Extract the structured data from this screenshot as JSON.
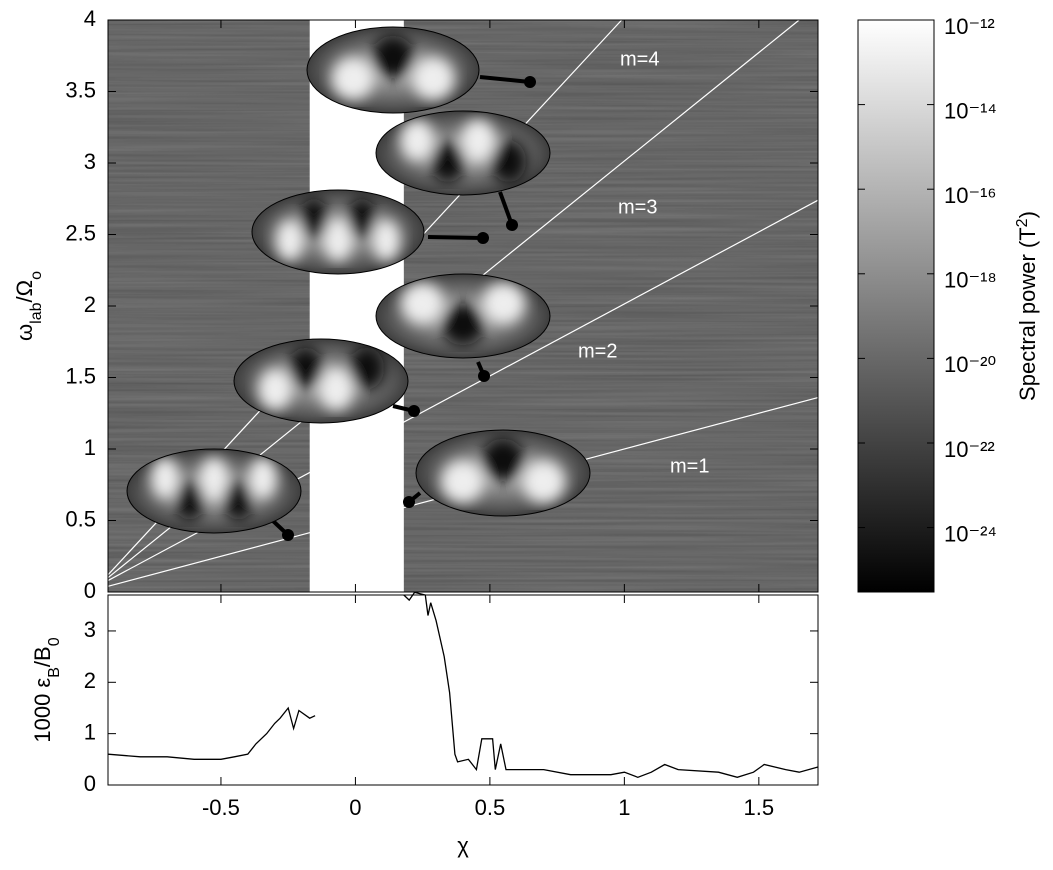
{
  "chart_data": [
    {
      "type": "heatmap",
      "ylabel": [
        {
          "text": "ω"
        },
        {
          "text": "lab",
          "sub": true
        },
        {
          "text": "/Ω"
        },
        {
          "text": "o",
          "sub": true
        }
      ],
      "xlim": [
        -0.92,
        1.72
      ],
      "xticks": [
        -0.5,
        0,
        0.5,
        1,
        1.5
      ],
      "ylim": [
        0,
        4
      ],
      "yticks": [
        0,
        0.5,
        1,
        1.5,
        2,
        2.5,
        3,
        3.5,
        4
      ],
      "gap": [
        -0.17,
        0.18
      ],
      "lines": [
        {
          "label": "m=1",
          "x": [
            -0.92,
            1.72
          ],
          "y": [
            0.04,
            1.36
          ]
        },
        {
          "label": "m=2",
          "x": [
            -0.92,
            1.72
          ],
          "y": [
            0.08,
            2.74
          ]
        },
        {
          "label": "m=3",
          "x": [
            -0.92,
            1.65
          ],
          "y": [
            0.1,
            4
          ]
        },
        {
          "label": "m=4",
          "x": [
            -0.92,
            0.99
          ],
          "y": [
            0.12,
            4
          ]
        }
      ],
      "line_color": "#ffffff",
      "colorbar": {
        "label": [
          {
            "text": "Spectral power (T"
          },
          {
            "text": "2",
            "sup": true
          },
          {
            "text": ")"
          }
        ],
        "scale": "log",
        "lim": [
          3e-26,
          1e-12
        ],
        "colors": [
          "#000000",
          "#ffffff"
        ],
        "ticks": [
          {
            "value": 1e-12,
            "label": "10⁻¹²"
          },
          {
            "value": 1e-14,
            "label": "10⁻¹⁴"
          },
          {
            "value": 1e-16,
            "label": "10⁻¹⁶"
          },
          {
            "value": 1e-18,
            "label": "10⁻¹⁸"
          },
          {
            "value": 1e-20,
            "label": "10⁻²⁰"
          },
          {
            "value": 1e-22,
            "label": "10⁻²²"
          },
          {
            "value": 1e-24,
            "label": "10⁻²⁴"
          }
        ]
      }
    },
    {
      "type": "line",
      "xlabel": "χ",
      "ylabel": [
        {
          "text": "1000 ε"
        },
        {
          "text": "B",
          "sub": true
        },
        {
          "text": "/B"
        },
        {
          "text": "0",
          "sub": true
        }
      ],
      "xlim": [
        -0.92,
        1.72
      ],
      "xticks": [
        -0.5,
        0,
        0.5,
        1,
        1.5
      ],
      "ylim": [
        0,
        3.7
      ],
      "yticks": [
        0,
        1,
        2,
        3
      ],
      "color": "#000000",
      "x": [
        -0.92,
        -0.8,
        -0.7,
        -0.6,
        -0.5,
        -0.45,
        -0.4,
        -0.37,
        -0.33,
        -0.3,
        -0.28,
        -0.25,
        -0.23,
        -0.21,
        -0.17,
        -0.15,
        0,
        0.18,
        0.2,
        0.22,
        0.26,
        0.27,
        0.28,
        0.3,
        0.33,
        0.35,
        0.37,
        0.38,
        0.42,
        0.45,
        0.47,
        0.51,
        0.52,
        0.54,
        0.56,
        0.7,
        0.8,
        0.95,
        1.0,
        1.05,
        1.1,
        1.15,
        1.2,
        1.35,
        1.42,
        1.48,
        1.52,
        1.6,
        1.65,
        1.72
      ],
      "values": [
        0.6,
        0.55,
        0.55,
        0.5,
        0.5,
        0.55,
        0.6,
        0.8,
        1.0,
        1.2,
        1.3,
        1.5,
        1.1,
        1.45,
        1.3,
        1.35,
        null,
        3.7,
        3.6,
        3.75,
        3.7,
        3.3,
        3.55,
        3.2,
        2.5,
        1.8,
        0.6,
        0.45,
        0.5,
        0.3,
        0.9,
        0.9,
        0.3,
        0.8,
        0.3,
        0.3,
        0.2,
        0.2,
        0.25,
        0.15,
        0.25,
        0.4,
        0.3,
        0.25,
        0.15,
        0.25,
        0.4,
        0.3,
        0.25,
        0.35
      ]
    }
  ]
}
